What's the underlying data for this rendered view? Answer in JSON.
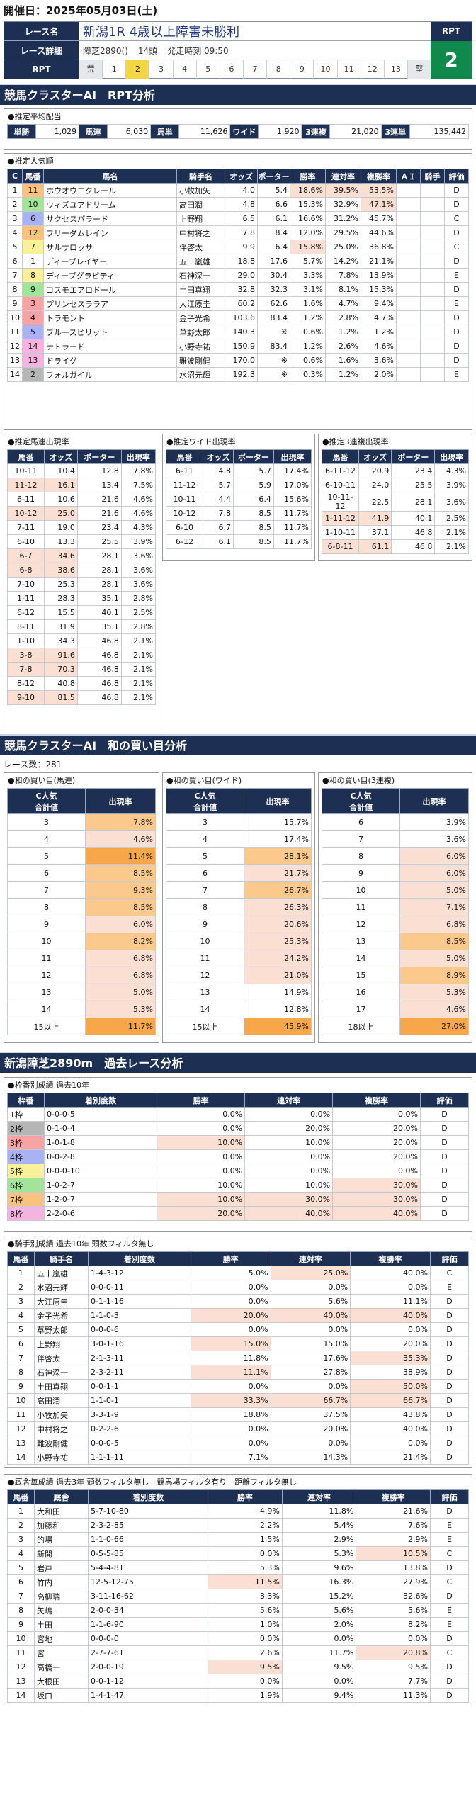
{
  "header": {
    "title": "開催日：2025年05月03日(土)"
  },
  "race": {
    "name_label": "レース名",
    "name": "新潟1R 4歳以上障害未勝利",
    "detail_label": "レース詳細",
    "course": "障芝2890()",
    "heads": "14頭",
    "start": "発走時刻 09:50",
    "rpt_label": "RPT",
    "rpt_scale_label": "RPT",
    "rpt_value": "2",
    "scale": [
      "荒",
      "1",
      "2",
      "3",
      "4",
      "5",
      "6",
      "7",
      "8",
      "9",
      "10",
      "11",
      "12",
      "13",
      "堅"
    ]
  },
  "sec1": "競馬クラスターAI　RPT分析",
  "payout": {
    "title": "●推定平均配当",
    "items": [
      [
        "単勝",
        "1,029"
      ],
      [
        "馬連",
        "6,030"
      ],
      [
        "馬単",
        "11,626"
      ],
      [
        "ワイド",
        "1,920"
      ],
      [
        "3連複",
        "21,020"
      ],
      [
        "3連単",
        "135,442"
      ]
    ]
  },
  "pop": {
    "title": "●推定人気順",
    "headers": [
      "C",
      "馬番",
      "馬名",
      "騎手名",
      "オッズ",
      "ポーター",
      "勝率",
      "連対率",
      "複勝率",
      "ＡＩ",
      "騎手",
      "評価"
    ],
    "rows": [
      [
        "1",
        "11",
        "ホウオウエクレール",
        "小牧加矢",
        "4.0",
        "5.4",
        "18.6%",
        "39.5%",
        "53.5%",
        "",
        "",
        "D"
      ],
      [
        "2",
        "10",
        "ウィズユアドリーム",
        "高田潤",
        "4.8",
        "6.6",
        "15.3%",
        "32.9%",
        "47.1%",
        "",
        "",
        "D"
      ],
      [
        "3",
        "6",
        "サクセスパラード",
        "上野翔",
        "6.5",
        "6.1",
        "16.6%",
        "31.2%",
        "45.7%",
        "",
        "",
        "C"
      ],
      [
        "4",
        "12",
        "フリーダムレイン",
        "中村将之",
        "7.8",
        "8.4",
        "12.0%",
        "29.5%",
        "44.6%",
        "",
        "",
        "D"
      ],
      [
        "5",
        "7",
        "サルサロッサ",
        "伴啓太",
        "9.9",
        "6.4",
        "15.8%",
        "25.0%",
        "36.8%",
        "",
        "",
        "C"
      ],
      [
        "6",
        "1",
        "ディープレイヤー",
        "五十嵐雄",
        "18.8",
        "17.6",
        "5.7%",
        "14.2%",
        "21.1%",
        "",
        "",
        "D"
      ],
      [
        "7",
        "8",
        "ディープグラビティ",
        "石神深一",
        "29.0",
        "30.4",
        "3.3%",
        "7.8%",
        "13.9%",
        "",
        "",
        "E"
      ],
      [
        "8",
        "9",
        "コスモエアロドール",
        "土田真翔",
        "32.8",
        "32.3",
        "3.1%",
        "8.1%",
        "15.3%",
        "",
        "",
        "D"
      ],
      [
        "9",
        "3",
        "プリンセスララア",
        "大江原圭",
        "60.2",
        "62.6",
        "1.6%",
        "4.7%",
        "9.4%",
        "",
        "",
        "E"
      ],
      [
        "10",
        "4",
        "トラモント",
        "金子光希",
        "103.6",
        "83.4",
        "1.2%",
        "2.8%",
        "4.7%",
        "",
        "",
        "D"
      ],
      [
        "11",
        "5",
        "ブルースピリット",
        "草野太郎",
        "140.3",
        "※",
        "0.6%",
        "1.2%",
        "1.2%",
        "",
        "",
        "D"
      ],
      [
        "12",
        "14",
        "テトラード",
        "小野寺祐",
        "150.9",
        "83.4",
        "1.2%",
        "2.6%",
        "4.6%",
        "",
        "",
        "D"
      ],
      [
        "13",
        "13",
        "ドライグ",
        "難波剛健",
        "170.0",
        "※",
        "0.6%",
        "1.6%",
        "3.6%",
        "",
        "",
        "D"
      ],
      [
        "14",
        "2",
        "フォルガイル",
        "水沼元輝",
        "192.3",
        "※",
        "0.3%",
        "1.2%",
        "2.0%",
        "",
        "",
        "E"
      ]
    ]
  },
  "umaren": {
    "title": "●推定馬連出現率",
    "headers": [
      "馬番",
      "オッズ",
      "ポーター",
      "出現率"
    ],
    "rows": [
      [
        "10-11",
        "10.4",
        "12.8",
        "7.8%"
      ],
      [
        "11-12",
        "16.1",
        "13.4",
        "7.5%"
      ],
      [
        "6-11",
        "10.6",
        "21.6",
        "4.6%"
      ],
      [
        "10-12",
        "25.0",
        "21.6",
        "4.6%"
      ],
      [
        "7-11",
        "19.0",
        "23.4",
        "4.3%"
      ],
      [
        "6-10",
        "13.3",
        "25.5",
        "3.9%"
      ],
      [
        "6-7",
        "34.6",
        "28.1",
        "3.6%"
      ],
      [
        "6-8",
        "38.6",
        "28.1",
        "3.6%"
      ],
      [
        "7-10",
        "25.3",
        "28.1",
        "3.6%"
      ],
      [
        "1-11",
        "28.3",
        "35.1",
        "2.8%"
      ],
      [
        "6-12",
        "15.5",
        "40.1",
        "2.5%"
      ],
      [
        "8-11",
        "31.9",
        "35.1",
        "2.8%"
      ],
      [
        "1-10",
        "34.3",
        "46.8",
        "2.1%"
      ],
      [
        "3-8",
        "91.6",
        "46.8",
        "2.1%"
      ],
      [
        "7-8",
        "70.3",
        "46.8",
        "2.1%"
      ],
      [
        "8-12",
        "40.8",
        "46.8",
        "2.1%"
      ],
      [
        "9-10",
        "81.5",
        "46.8",
        "2.1%"
      ]
    ]
  },
  "wide": {
    "title": "●推定ワイド出現率",
    "headers": [
      "馬番",
      "オッズ",
      "ポーター",
      "出現率"
    ],
    "rows": [
      [
        "6-11",
        "4.8",
        "5.7",
        "17.4%"
      ],
      [
        "11-12",
        "5.7",
        "5.9",
        "17.0%"
      ],
      [
        "10-11",
        "4.4",
        "6.4",
        "15.6%"
      ],
      [
        "10-12",
        "7.8",
        "8.5",
        "11.7%"
      ],
      [
        "6-10",
        "6.7",
        "8.5",
        "11.7%"
      ],
      [
        "6-12",
        "6.1",
        "8.5",
        "11.7%"
      ]
    ]
  },
  "sanren": {
    "title": "●推定3連複出現率",
    "headers": [
      "馬番",
      "オッズ",
      "ポーター",
      "出現率"
    ],
    "rows": [
      [
        "6-11-12",
        "20.9",
        "23.4",
        "4.3%"
      ],
      [
        "6-10-11",
        "24.0",
        "25.5",
        "3.9%"
      ],
      [
        "10-11-12",
        "22.5",
        "28.1",
        "3.6%"
      ],
      [
        "1-11-12",
        "41.9",
        "40.1",
        "2.5%"
      ],
      [
        "1-10-11",
        "37.1",
        "46.8",
        "2.1%"
      ],
      [
        "6-8-11",
        "61.1",
        "46.8",
        "2.1%"
      ]
    ]
  },
  "sec2": "競馬クラスターAI　和の買い目分析",
  "race_count": "レース数：281",
  "wa_umaren": {
    "title": "●和の買い目(馬連)",
    "h1": "C人気\n合計値",
    "h2": "出現率",
    "rows": [
      [
        "3",
        "7.8%"
      ],
      [
        "4",
        "4.6%"
      ],
      [
        "5",
        "11.4%"
      ],
      [
        "6",
        "8.5%"
      ],
      [
        "7",
        "9.3%"
      ],
      [
        "8",
        "8.5%"
      ],
      [
        "9",
        "6.0%"
      ],
      [
        "10",
        "8.2%"
      ],
      [
        "11",
        "6.8%"
      ],
      [
        "12",
        "6.8%"
      ],
      [
        "13",
        "5.0%"
      ],
      [
        "14",
        "5.3%"
      ],
      [
        "15以上",
        "11.7%"
      ]
    ]
  },
  "wa_wide": {
    "title": "●和の買い目(ワイド)",
    "h1": "C人気\n合計値",
    "h2": "出現率",
    "rows": [
      [
        "3",
        "15.7%"
      ],
      [
        "4",
        "17.4%"
      ],
      [
        "5",
        "28.1%"
      ],
      [
        "6",
        "21.7%"
      ],
      [
        "7",
        "26.7%"
      ],
      [
        "8",
        "26.3%"
      ],
      [
        "9",
        "20.6%"
      ],
      [
        "10",
        "25.3%"
      ],
      [
        "11",
        "24.2%"
      ],
      [
        "12",
        "21.0%"
      ],
      [
        "13",
        "14.9%"
      ],
      [
        "14",
        "12.8%"
      ],
      [
        "15以上",
        "45.9%"
      ]
    ]
  },
  "wa_sanren": {
    "title": "●和の買い目(3連複)",
    "h1": "C人気\n合計値",
    "h2": "出現率",
    "rows": [
      [
        "6",
        "3.9%"
      ],
      [
        "7",
        "3.6%"
      ],
      [
        "8",
        "6.0%"
      ],
      [
        "9",
        "6.0%"
      ],
      [
        "10",
        "5.0%"
      ],
      [
        "11",
        "7.1%"
      ],
      [
        "12",
        "6.8%"
      ],
      [
        "13",
        "8.5%"
      ],
      [
        "14",
        "5.0%"
      ],
      [
        "15",
        "8.9%"
      ],
      [
        "16",
        "5.3%"
      ],
      [
        "17",
        "4.6%"
      ],
      [
        "18以上",
        "27.0%"
      ]
    ]
  },
  "sec3": "新潟障芝2890m　過去レース分析",
  "waku": {
    "title": "●枠番別成績 過去10年",
    "headers": [
      "枠番",
      "着別度数",
      "勝率",
      "連対率",
      "複勝率",
      "評価"
    ],
    "rows": [
      [
        "1枠",
        "0-0-0-5",
        "0.0%",
        "0.0%",
        "0.0%",
        "D"
      ],
      [
        "2枠",
        "0-1-0-4",
        "0.0%",
        "20.0%",
        "20.0%",
        "D"
      ],
      [
        "3枠",
        "1-0-1-8",
        "10.0%",
        "10.0%",
        "20.0%",
        "D"
      ],
      [
        "4枠",
        "0-0-2-8",
        "0.0%",
        "0.0%",
        "20.0%",
        "D"
      ],
      [
        "5枠",
        "0-0-0-10",
        "0.0%",
        "0.0%",
        "0.0%",
        "D"
      ],
      [
        "6枠",
        "1-0-2-7",
        "10.0%",
        "10.0%",
        "30.0%",
        "D"
      ],
      [
        "7枠",
        "1-2-0-7",
        "10.0%",
        "30.0%",
        "30.0%",
        "D"
      ],
      [
        "8枠",
        "2-2-0-6",
        "20.0%",
        "40.0%",
        "40.0%",
        "D"
      ]
    ]
  },
  "jockey": {
    "title": "●騎手別成績 過去10年 頭数フィルタ無し",
    "headers": [
      "馬番",
      "騎手名",
      "着別度数",
      "勝率",
      "連対率",
      "複勝率",
      "評価"
    ],
    "rows": [
      [
        "1",
        "五十嵐雄",
        "1-4-3-12",
        "5.0%",
        "25.0%",
        "40.0%",
        "C"
      ],
      [
        "2",
        "水沼元輝",
        "0-0-0-11",
        "0.0%",
        "0.0%",
        "0.0%",
        "E"
      ],
      [
        "3",
        "大江原圭",
        "0-1-1-16",
        "0.0%",
        "5.6%",
        "11.1%",
        "D"
      ],
      [
        "4",
        "金子光希",
        "1-1-0-3",
        "20.0%",
        "40.0%",
        "40.0%",
        "D"
      ],
      [
        "5",
        "草野太郎",
        "0-0-0-6",
        "0.0%",
        "0.0%",
        "0.0%",
        "D"
      ],
      [
        "6",
        "上野翔",
        "3-0-1-16",
        "15.0%",
        "15.0%",
        "20.0%",
        "D"
      ],
      [
        "7",
        "伴啓太",
        "2-1-3-11",
        "11.8%",
        "17.6%",
        "35.3%",
        "D"
      ],
      [
        "8",
        "石神深一",
        "2-3-2-11",
        "11.1%",
        "27.8%",
        "38.9%",
        "D"
      ],
      [
        "9",
        "土田真翔",
        "0-0-1-1",
        "0.0%",
        "0.0%",
        "50.0%",
        "D"
      ],
      [
        "10",
        "高田潤",
        "1-1-0-1",
        "33.3%",
        "66.7%",
        "66.7%",
        "D"
      ],
      [
        "11",
        "小牧加矢",
        "3-3-1-9",
        "18.8%",
        "37.5%",
        "43.8%",
        "D"
      ],
      [
        "12",
        "中村将之",
        "0-2-2-6",
        "0.0%",
        "20.0%",
        "40.0%",
        "D"
      ],
      [
        "13",
        "難波剛健",
        "0-0-0-5",
        "0.0%",
        "0.0%",
        "0.0%",
        "D"
      ],
      [
        "14",
        "小野寺祐",
        "1-1-1-11",
        "7.1%",
        "14.3%",
        "21.4%",
        "D"
      ]
    ]
  },
  "trainer": {
    "title": "●厩舎毎成績 過去3年 頭数フィルタ無し　競馬場フィルタ有り　距離フィルタ無し",
    "headers": [
      "馬番",
      "厩舎",
      "着別度数",
      "勝率",
      "連対率",
      "複勝率",
      "評価"
    ],
    "rows": [
      [
        "1",
        "大和田",
        "5-7-10-80",
        "4.9%",
        "11.8%",
        "21.6%",
        "D"
      ],
      [
        "2",
        "加藤和",
        "2-3-2-85",
        "2.2%",
        "5.4%",
        "7.6%",
        "E"
      ],
      [
        "3",
        "的場",
        "1-1-0-66",
        "1.5%",
        "2.9%",
        "2.9%",
        "E"
      ],
      [
        "4",
        "新開",
        "0-5-5-85",
        "0.0%",
        "5.3%",
        "10.5%",
        "C"
      ],
      [
        "5",
        "岩戸",
        "5-4-4-81",
        "5.3%",
        "9.6%",
        "13.8%",
        "D"
      ],
      [
        "6",
        "竹内",
        "12-5-12-75",
        "11.5%",
        "16.3%",
        "27.9%",
        "C"
      ],
      [
        "7",
        "高柳瑞",
        "3-11-16-62",
        "3.3%",
        "15.2%",
        "32.6%",
        "D"
      ],
      [
        "8",
        "矢嶋",
        "2-0-0-34",
        "5.6%",
        "5.6%",
        "5.6%",
        "E"
      ],
      [
        "9",
        "土田",
        "1-1-6-90",
        "1.0%",
        "2.0%",
        "8.2%",
        "E"
      ],
      [
        "10",
        "宮地",
        "0-0-0-0",
        "0.0%",
        "0.0%",
        "0.0%",
        "D"
      ],
      [
        "11",
        "宮",
        "2-7-7-61",
        "2.6%",
        "11.7%",
        "20.8%",
        "C"
      ],
      [
        "12",
        "高橋一",
        "2-0-0-19",
        "9.5%",
        "9.5%",
        "9.5%",
        "D"
      ],
      [
        "13",
        "大根田",
        "0-0-1-12",
        "0.0%",
        "0.0%",
        "7.7%",
        "D"
      ],
      [
        "14",
        "坂口",
        "1-4-1-47",
        "1.9%",
        "9.4%",
        "11.3%",
        "D"
      ]
    ]
  }
}
